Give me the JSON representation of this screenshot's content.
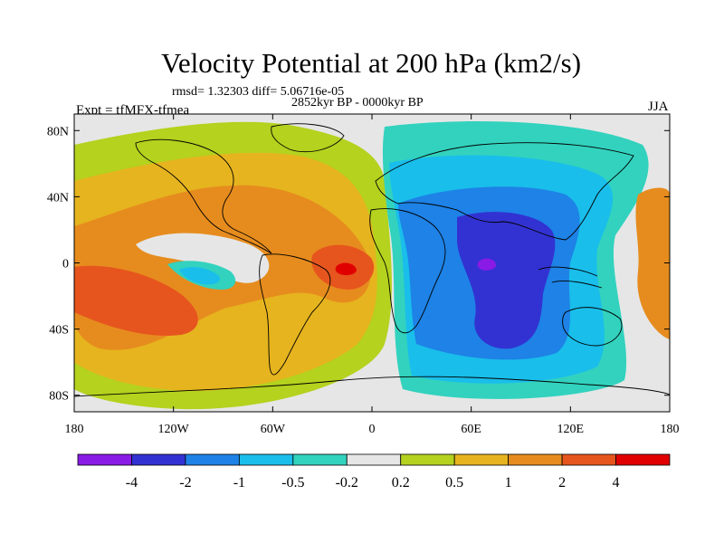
{
  "header": {
    "title": "Velocity Potential at 200 hPa (km2/s)",
    "stats": "rmsd= 1.32303 diff= 5.06716e-05",
    "period": "2852kyr BP - 0000kyr BP",
    "experiment": "Expt = tfMFX-tfmea",
    "season": "JJA"
  },
  "map": {
    "projection": "cylindrical equidistant",
    "lon_range": [
      -180,
      180
    ],
    "lat_range": [
      -90,
      90
    ],
    "x_ticks": [
      {
        "value": -180,
        "label": "180"
      },
      {
        "value": -120,
        "label": "120W"
      },
      {
        "value": -60,
        "label": "60W"
      },
      {
        "value": 0,
        "label": "0"
      },
      {
        "value": 60,
        "label": "60E"
      },
      {
        "value": 120,
        "label": "120E"
      },
      {
        "value": 180,
        "label": "180"
      }
    ],
    "y_ticks": [
      {
        "value": 80,
        "label": "80N"
      },
      {
        "value": 40,
        "label": "40N"
      },
      {
        "value": 0,
        "label": "0"
      },
      {
        "value": -40,
        "label": "40S"
      },
      {
        "value": -80,
        "label": "80S"
      }
    ],
    "background_color": "#e6e6e6",
    "coastline_color": "#000000",
    "features": [
      {
        "name": "Central Pacific positive centre",
        "lon": -150,
        "lat": -15,
        "level": "2 to 4",
        "color": "#e53a1f"
      },
      {
        "name": "Tropical Atlantic positive centre",
        "lon": -20,
        "lat": 0,
        "level": "> 4",
        "color": "#e00000"
      },
      {
        "name": "Eastern Pacific negative band",
        "lon": -95,
        "lat": -5,
        "level": "-0.5 to -1",
        "color": "#19a0e6"
      },
      {
        "name": "Indian Ocean negative centre",
        "lon": 70,
        "lat": -5,
        "level": "-2 to -4",
        "color": "#3232d2"
      }
    ]
  },
  "colorbar": {
    "boundaries": [
      "-4",
      "-2",
      "-1",
      "-0.5",
      "-0.2",
      "0.2",
      "0.5",
      "1",
      "2",
      "4"
    ],
    "colors": [
      "#8a1ae6",
      "#3232d2",
      "#1e82e6",
      "#19beeb",
      "#32d2be",
      "#e6e6e6",
      "#b4d21e",
      "#e6b41e",
      "#e68c1e",
      "#e6551e",
      "#e00000"
    ]
  }
}
